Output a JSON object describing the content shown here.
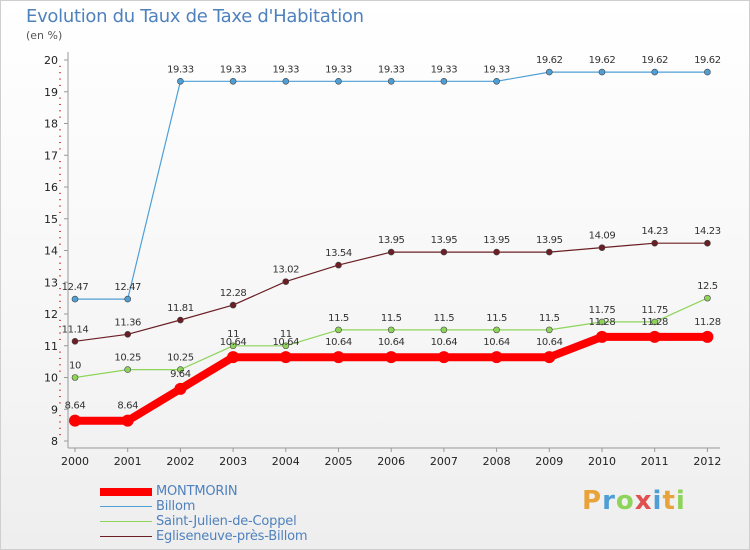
{
  "chart_data": {
    "type": "line",
    "title": "Evolution du Taux de Taxe d'Habitation",
    "subtitle": "(en %)",
    "x": [
      "2000",
      "2001",
      "2002",
      "2003",
      "2004",
      "2005",
      "2006",
      "2007",
      "2008",
      "2009",
      "2010",
      "2011",
      "2012"
    ],
    "ylim": [
      8,
      20
    ],
    "yticks": [
      "8",
      "9",
      "10",
      "11",
      "12",
      "13",
      "14",
      "15",
      "16",
      "17",
      "18",
      "19",
      "20"
    ],
    "grid": false,
    "legend_position": "bottom-left",
    "series": [
      {
        "name": "MONTMORIN",
        "color": "#ff0000",
        "values": [
          8.64,
          8.64,
          9.64,
          10.64,
          10.64,
          10.64,
          10.64,
          10.64,
          10.64,
          10.64,
          11.28,
          11.28,
          11.28
        ],
        "labels": [
          "8.64",
          "8.64",
          "9.64",
          "10.64",
          "10.64",
          "10.64",
          "10.64",
          "10.64",
          "10.64",
          "10.64",
          "11.28",
          "11.28",
          "11.28"
        ]
      },
      {
        "name": "Billom",
        "color": "#4f9fd6",
        "values": [
          12.47,
          12.47,
          19.33,
          19.33,
          19.33,
          19.33,
          19.33,
          19.33,
          19.33,
          19.62,
          19.62,
          19.62,
          19.62
        ],
        "labels": [
          "12.47",
          "12.47",
          "19.33",
          "19.33",
          "19.33",
          "19.33",
          "19.33",
          "19.33",
          "19.33",
          "19.62",
          "19.62",
          "19.62",
          "19.62"
        ]
      },
      {
        "name": "Saint-Julien-de-Coppel",
        "color": "#8ed45a",
        "values": [
          10,
          10.25,
          10.25,
          11,
          11,
          11.5,
          11.5,
          11.5,
          11.5,
          11.5,
          11.75,
          11.75,
          12.5
        ],
        "labels": [
          "10",
          "10.25",
          "10.25",
          "11",
          "11",
          "11.5",
          "11.5",
          "11.5",
          "11.5",
          "11.5",
          "11.75",
          "11.75",
          "12.5"
        ]
      },
      {
        "name": "Egliseneuve-près-Billom",
        "color": "#6b1f24",
        "values": [
          11.14,
          11.36,
          11.81,
          12.28,
          13.02,
          13.54,
          13.95,
          13.95,
          13.95,
          13.95,
          14.09,
          14.23,
          14.23
        ],
        "labels": [
          "11.14",
          "11.36",
          "11.81",
          "12.28",
          "13.02",
          "13.54",
          "13.95",
          "13.95",
          "13.95",
          "13.95",
          "14.09",
          "14.23",
          "14.23"
        ]
      }
    ]
  },
  "logo": {
    "letters": [
      "P",
      "r",
      "o",
      "x",
      "i",
      "t",
      "i"
    ],
    "colors": [
      "#e8a33a",
      "#4f9fd6",
      "#8ed45a",
      "#e05050",
      "#4f9fd6",
      "#e8a33a",
      "#8ed45a"
    ]
  }
}
